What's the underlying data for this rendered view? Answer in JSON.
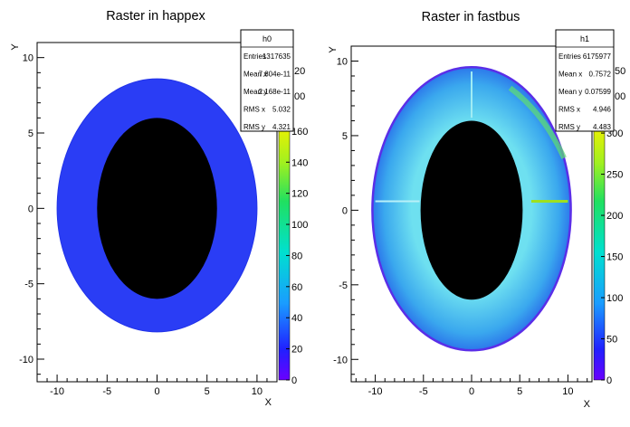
{
  "chart_data": [
    {
      "type": "heatmap",
      "title": "Raster in happex",
      "xlabel": "X",
      "ylabel": "Y",
      "xlim": [
        -12,
        12
      ],
      "ylim": [
        -11.5,
        11
      ],
      "xticks": [
        -10,
        -5,
        0,
        5,
        10
      ],
      "yticks": [
        -10,
        -5,
        0,
        5,
        10
      ],
      "stats": {
        "name": "h0",
        "rows": [
          {
            "label": "Entries",
            "value": "1317635"
          },
          {
            "label": "Mean x",
            "value": "7.804e-11"
          },
          {
            "label": "Mean y",
            "value": "2.168e-11"
          },
          {
            "label": "RMS x",
            "value": "5.032"
          },
          {
            "label": "RMS y",
            "value": "4.321"
          }
        ]
      },
      "palette": {
        "ticks": [
          "0",
          "20",
          "40",
          "60",
          "80",
          "100",
          "120",
          "140",
          "160"
        ],
        "partial_ticks": [
          "20",
          "00"
        ]
      },
      "shape": {
        "outer": {
          "cx": 0,
          "cy": 0,
          "rx": 10,
          "ry_top": 8.6,
          "ry_bottom": 8.2
        },
        "inner": {
          "cx": 0,
          "cy": 0,
          "rx": 6,
          "ry": 6
        },
        "fill_color": "#2a3df5",
        "hole_color": "#000000"
      }
    },
    {
      "type": "heatmap",
      "title": "Raster in fastbus",
      "xlabel": "X",
      "ylabel": "Y",
      "xlim": [
        -12.5,
        12.5
      ],
      "ylim": [
        -11.5,
        11
      ],
      "xticks": [
        -10,
        -5,
        0,
        5,
        10
      ],
      "yticks": [
        -10,
        -5,
        0,
        5,
        10
      ],
      "stats": {
        "name": "h1",
        "rows": [
          {
            "label": "Entries",
            "value": "6175977"
          },
          {
            "label": "Mean x",
            "value": "0.7572"
          },
          {
            "label": "Mean y",
            "value": "0.07599"
          },
          {
            "label": "RMS x",
            "value": "4.946"
          },
          {
            "label": "RMS y",
            "value": "4.483"
          }
        ]
      },
      "palette": {
        "ticks": [
          "0",
          "50",
          "100",
          "150",
          "200",
          "250",
          "300"
        ],
        "partial_ticks": [
          "50",
          "00"
        ]
      },
      "shape": {
        "outer": {
          "cx": 0,
          "cy": 0,
          "rx": 10.3,
          "ry_top": 9.6,
          "ry_bottom": 9.4
        },
        "inner": {
          "cx": 0,
          "cy": 0,
          "rx": 5.3,
          "ry": 6
        },
        "fill_color": "#3ab0ee",
        "hole_color": "#000000"
      }
    }
  ]
}
